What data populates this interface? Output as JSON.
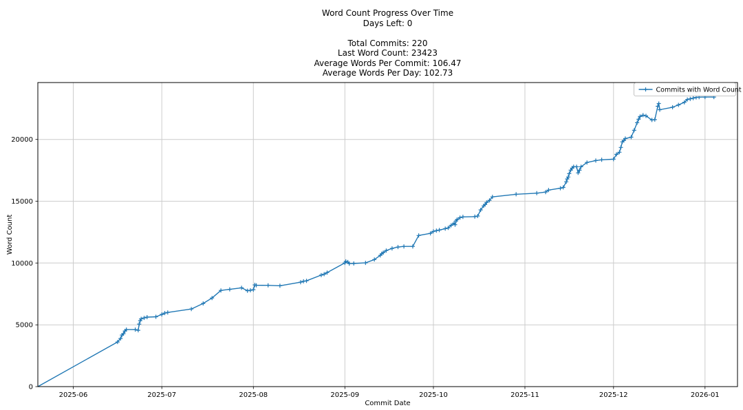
{
  "header": {
    "title": "Word Count Progress Over Time",
    "days_left": "Days Left: 0",
    "stats": [
      "Total Commits: 220",
      "Last Word Count: 23423",
      "Average Words Per Commit: 106.47",
      "Average Words Per Day: 102.73"
    ]
  },
  "chart_data": {
    "type": "line",
    "title": "Word Count Progress Over Time",
    "xlabel": "Commit Date",
    "ylabel": "Word Count",
    "grid": true,
    "legend_position": "upper right",
    "xlim": [
      "2025-05-20",
      "2026-01-12"
    ],
    "ylim": [
      0,
      24600
    ],
    "y_ticks": [
      0,
      5000,
      10000,
      15000,
      20000
    ],
    "x_ticks": [
      {
        "date": "2025-06-01",
        "label": "2025-06"
      },
      {
        "date": "2025-07-01",
        "label": "2025-07"
      },
      {
        "date": "2025-08-01",
        "label": "2025-08"
      },
      {
        "date": "2025-09-01",
        "label": "2025-09"
      },
      {
        "date": "2025-10-01",
        "label": "2025-10"
      },
      {
        "date": "2025-11-01",
        "label": "2025-11"
      },
      {
        "date": "2025-12-01",
        "label": "2025-12"
      },
      {
        "date": "2026-01-01",
        "label": "2026-01"
      }
    ],
    "colors": {
      "accent": "#1f77b4",
      "grid": "#cccccc",
      "spine": "#000000"
    },
    "series": [
      {
        "name": "Commits with Word Count",
        "color": "#1f77b4",
        "marker": "+",
        "points": [
          [
            "2025-05-20",
            0
          ],
          [
            "2025-06-16",
            3610
          ],
          [
            "2025-06-17",
            3890
          ],
          [
            "2025-06-17T12:00",
            4170
          ],
          [
            "2025-06-18",
            4280
          ],
          [
            "2025-06-18T12:00",
            4500
          ],
          [
            "2025-06-19",
            4615
          ],
          [
            "2025-06-22",
            4615
          ],
          [
            "2025-06-23",
            4560
          ],
          [
            "2025-06-23T08:00",
            5060
          ],
          [
            "2025-06-23T16:00",
            5340
          ],
          [
            "2025-06-24",
            5480
          ],
          [
            "2025-06-25",
            5560
          ],
          [
            "2025-06-26",
            5620
          ],
          [
            "2025-06-29",
            5650
          ],
          [
            "2025-07-01",
            5840
          ],
          [
            "2025-07-02",
            5950
          ],
          [
            "2025-07-03",
            6000
          ],
          [
            "2025-07-11",
            6280
          ],
          [
            "2025-07-15",
            6730
          ],
          [
            "2025-07-18",
            7170
          ],
          [
            "2025-07-21",
            7780
          ],
          [
            "2025-07-24",
            7870
          ],
          [
            "2025-07-28",
            7990
          ],
          [
            "2025-07-30",
            7760
          ],
          [
            "2025-07-31",
            7790
          ],
          [
            "2025-08-01",
            7840
          ],
          [
            "2025-08-01T12:00",
            8230
          ],
          [
            "2025-08-02",
            8200
          ],
          [
            "2025-08-06",
            8190
          ],
          [
            "2025-08-10",
            8160
          ],
          [
            "2025-08-17",
            8450
          ],
          [
            "2025-08-18",
            8520
          ],
          [
            "2025-08-19",
            8560
          ],
          [
            "2025-08-24",
            9020
          ],
          [
            "2025-08-25",
            9100
          ],
          [
            "2025-08-26",
            9230
          ],
          [
            "2025-09-01",
            10010
          ],
          [
            "2025-09-01T08:00",
            10130
          ],
          [
            "2025-09-02",
            10080
          ],
          [
            "2025-09-02T12:00",
            9950
          ],
          [
            "2025-09-04",
            9960
          ],
          [
            "2025-09-08",
            10010
          ],
          [
            "2025-09-11",
            10280
          ],
          [
            "2025-09-13",
            10620
          ],
          [
            "2025-09-13T12:00",
            10750
          ],
          [
            "2025-09-14",
            10840
          ],
          [
            "2025-09-15",
            11010
          ],
          [
            "2025-09-17",
            11180
          ],
          [
            "2025-09-19",
            11290
          ],
          [
            "2025-09-21",
            11340
          ],
          [
            "2025-09-24",
            11340
          ],
          [
            "2025-09-26",
            12230
          ],
          [
            "2025-09-30",
            12400
          ],
          [
            "2025-10-01",
            12560
          ],
          [
            "2025-10-02",
            12620
          ],
          [
            "2025-10-03",
            12670
          ],
          [
            "2025-10-05",
            12780
          ],
          [
            "2025-10-06",
            12840
          ],
          [
            "2025-10-07",
            13050
          ],
          [
            "2025-10-08",
            13230
          ],
          [
            "2025-10-08T08:00",
            13100
          ],
          [
            "2025-10-08T16:00",
            13400
          ],
          [
            "2025-10-09",
            13510
          ],
          [
            "2025-10-10",
            13670
          ],
          [
            "2025-10-11",
            13730
          ],
          [
            "2025-10-15",
            13750
          ],
          [
            "2025-10-16",
            13800
          ],
          [
            "2025-10-17",
            14300
          ],
          [
            "2025-10-18",
            14620
          ],
          [
            "2025-10-18T12:00",
            14730
          ],
          [
            "2025-10-19",
            14900
          ],
          [
            "2025-10-20",
            15070
          ],
          [
            "2025-10-21",
            15350
          ],
          [
            "2025-10-29",
            15560
          ],
          [
            "2025-11-05",
            15650
          ],
          [
            "2025-11-08",
            15740
          ],
          [
            "2025-11-09",
            15900
          ],
          [
            "2025-11-13",
            16050
          ],
          [
            "2025-11-14",
            16120
          ],
          [
            "2025-11-15",
            16570
          ],
          [
            "2025-11-15T08:00",
            16800
          ],
          [
            "2025-11-15T16:00",
            16960
          ],
          [
            "2025-11-16",
            17230
          ],
          [
            "2025-11-16T12:00",
            17510
          ],
          [
            "2025-11-17",
            17680
          ],
          [
            "2025-11-17T12:00",
            17790
          ],
          [
            "2025-11-18T12:00",
            17790
          ],
          [
            "2025-11-19",
            17290
          ],
          [
            "2025-11-19T12:00",
            17510
          ],
          [
            "2025-11-20",
            17790
          ],
          [
            "2025-11-22",
            18130
          ],
          [
            "2025-11-25",
            18290
          ],
          [
            "2025-11-27",
            18350
          ],
          [
            "2025-12-01",
            18400
          ],
          [
            "2025-12-02",
            18790
          ],
          [
            "2025-12-03",
            18960
          ],
          [
            "2025-12-03T12:00",
            19350
          ],
          [
            "2025-12-04",
            19800
          ],
          [
            "2025-12-04T12:00",
            19910
          ],
          [
            "2025-12-05",
            20070
          ],
          [
            "2025-12-07",
            20180
          ],
          [
            "2025-12-08",
            20740
          ],
          [
            "2025-12-09",
            21350
          ],
          [
            "2025-12-09T12:00",
            21630
          ],
          [
            "2025-12-10",
            21850
          ],
          [
            "2025-12-11",
            21960
          ],
          [
            "2025-12-12",
            21900
          ],
          [
            "2025-12-14",
            21570
          ],
          [
            "2025-12-15",
            21600
          ],
          [
            "2025-12-16",
            22680
          ],
          [
            "2025-12-16T08:00",
            22900
          ],
          [
            "2025-12-16T16:00",
            22400
          ],
          [
            "2025-12-21",
            22600
          ],
          [
            "2025-12-23",
            22790
          ],
          [
            "2025-12-25",
            23000
          ],
          [
            "2025-12-26",
            23230
          ],
          [
            "2025-12-27",
            23280
          ],
          [
            "2025-12-28",
            23340
          ],
          [
            "2025-12-29",
            23400
          ],
          [
            "2025-12-30",
            23420
          ],
          [
            "2026-01-01",
            23423
          ],
          [
            "2026-01-04",
            23423
          ]
        ]
      }
    ]
  }
}
